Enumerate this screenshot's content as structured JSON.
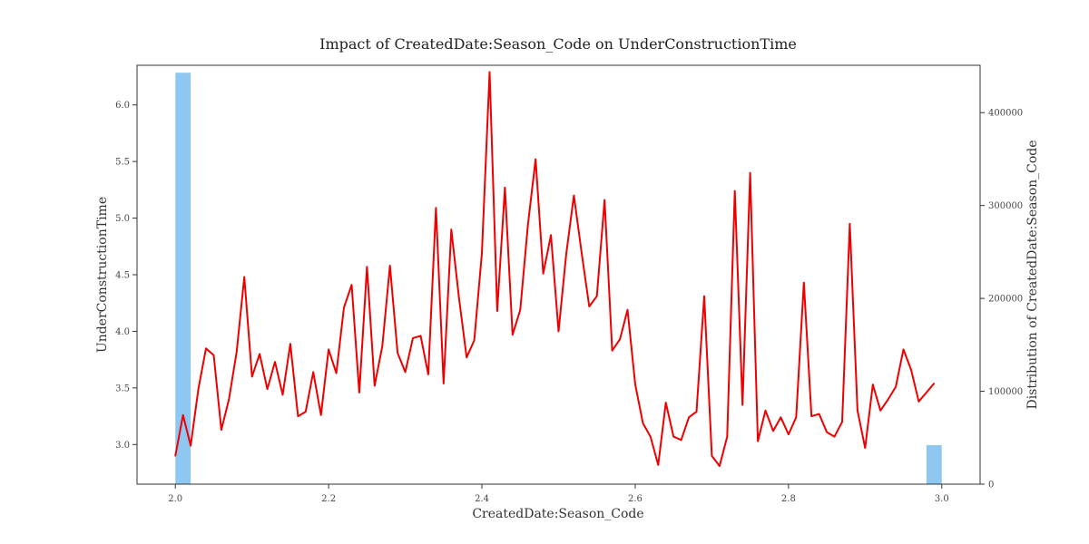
{
  "chart_data": {
    "type": "line",
    "title": "Impact of CreatedDate:Season_Code on UnderConstructionTime",
    "xlabel": "CreatedDate:Season_Code",
    "ylabel": "UnderConstructionTime",
    "y2label": "Distribution of CreatedDate:Season_Code",
    "xlim": [
      1.95,
      3.05
    ],
    "ylim": [
      2.65,
      6.35
    ],
    "y2lim": [
      0,
      451000
    ],
    "x_ticks": [
      "2.0",
      "2.2",
      "2.4",
      "2.6",
      "2.8",
      "3.0"
    ],
    "x_tick_values": [
      2.0,
      2.2,
      2.4,
      2.6,
      2.8,
      3.0
    ],
    "y_ticks": [
      "3.0",
      "3.5",
      "4.0",
      "4.5",
      "5.0",
      "5.5",
      "6.0"
    ],
    "y_tick_values": [
      3.0,
      3.5,
      4.0,
      4.5,
      5.0,
      5.5,
      6.0
    ],
    "y2_ticks": [
      "0",
      "100000",
      "200000",
      "300000",
      "400000"
    ],
    "y2_tick_values": [
      0,
      100000,
      200000,
      300000,
      400000
    ],
    "grid": false,
    "line_series": {
      "color": "#ee0000",
      "x": [
        2.0,
        2.01,
        2.02,
        2.03,
        2.04,
        2.05,
        2.06,
        2.07,
        2.08,
        2.09,
        2.1,
        2.11,
        2.12,
        2.13,
        2.14,
        2.15,
        2.16,
        2.17,
        2.18,
        2.19,
        2.2,
        2.21,
        2.22,
        2.23,
        2.24,
        2.25,
        2.26,
        2.27,
        2.28,
        2.29,
        2.3,
        2.31,
        2.32,
        2.33,
        2.34,
        2.35,
        2.36,
        2.37,
        2.38,
        2.39,
        2.4,
        2.41,
        2.42,
        2.43,
        2.44,
        2.45,
        2.46,
        2.47,
        2.48,
        2.49,
        2.5,
        2.51,
        2.52,
        2.53,
        2.54,
        2.55,
        2.56,
        2.57,
        2.58,
        2.59,
        2.6,
        2.61,
        2.62,
        2.63,
        2.64,
        2.65,
        2.66,
        2.67,
        2.68,
        2.69,
        2.7,
        2.71,
        2.72,
        2.73,
        2.74,
        2.75,
        2.76,
        2.77,
        2.78,
        2.79,
        2.8,
        2.81,
        2.82,
        2.83,
        2.84,
        2.85,
        2.86,
        2.87,
        2.88,
        2.89,
        2.9,
        2.91,
        2.92,
        2.93,
        2.94,
        2.95,
        2.96,
        2.97,
        2.98,
        2.99
      ],
      "y": [
        2.9,
        3.26,
        2.99,
        3.49,
        3.85,
        3.79,
        3.13,
        3.4,
        3.82,
        4.48,
        3.6,
        3.8,
        3.49,
        3.73,
        3.44,
        3.89,
        3.25,
        3.29,
        3.64,
        3.26,
        3.84,
        3.63,
        4.21,
        4.41,
        3.46,
        4.57,
        3.52,
        3.87,
        4.58,
        3.81,
        3.64,
        3.94,
        3.96,
        3.62,
        5.09,
        3.54,
        4.9,
        4.3,
        3.77,
        3.92,
        4.69,
        6.29,
        4.18,
        5.27,
        3.97,
        4.19,
        4.94,
        5.52,
        4.51,
        4.85,
        4.0,
        4.68,
        5.2,
        4.7,
        4.22,
        4.31,
        5.16,
        3.83,
        3.93,
        4.19,
        3.53,
        3.19,
        3.07,
        2.82,
        3.37,
        3.07,
        3.04,
        3.24,
        3.29,
        4.31,
        2.9,
        2.81,
        3.07,
        5.24,
        3.35,
        5.4,
        3.03,
        3.3,
        3.12,
        3.24,
        3.09,
        3.24,
        4.43,
        3.25,
        3.27,
        3.11,
        3.07,
        3.2,
        4.95,
        3.3,
        2.97,
        3.53,
        3.3,
        3.4,
        3.51,
        3.84,
        3.66,
        3.38,
        3.46,
        3.54
      ]
    },
    "histogram": {
      "color": "#8ec8f2",
      "bins": [
        {
          "x0": 2.0,
          "x1": 2.02,
          "count": 443000
        },
        {
          "x0": 2.98,
          "x1": 3.0,
          "count": 42000
        }
      ]
    }
  }
}
